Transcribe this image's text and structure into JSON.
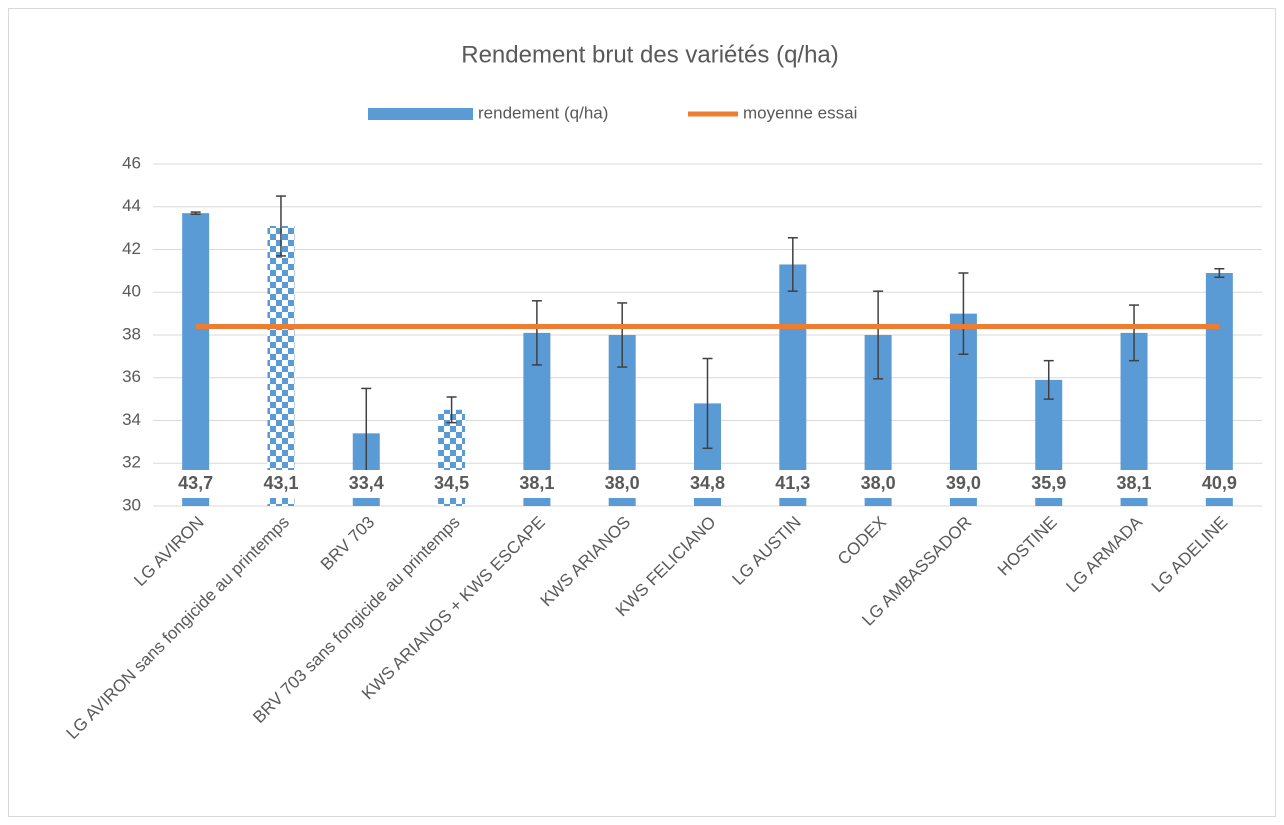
{
  "chart_data": {
    "type": "bar",
    "title": "Rendement brut des variétés (q/ha)",
    "categories": [
      "LG AVIRON",
      "LG AVIRON sans fongicide au printemps",
      "BRV 703",
      "BRV 703 sans fongicide au printemps",
      "KWS ARIANOS + KWS ESCAPE",
      "KWS ARIANOS",
      "KWS FELICIANO",
      "LG AUSTIN",
      "CODEX",
      "LG AMBASSADOR",
      "HOSTINE",
      "LG ARMADA",
      "LG ADELINE"
    ],
    "series": [
      {
        "name": "rendement (q/ha)",
        "type": "bar",
        "color": "#5b9bd5",
        "values": [
          43.7,
          43.1,
          33.4,
          34.5,
          38.1,
          38.0,
          34.8,
          41.3,
          38.0,
          39.0,
          35.9,
          38.1,
          40.9
        ],
        "value_labels": [
          "43,7",
          "43,1",
          "33,4",
          "34,5",
          "38,1",
          "38,0",
          "34,8",
          "41,3",
          "38,0",
          "39,0",
          "35,9",
          "38,1",
          "40,9"
        ],
        "errors": [
          0.05,
          1.4,
          2.1,
          0.6,
          1.5,
          1.5,
          2.1,
          1.25,
          2.05,
          1.9,
          0.9,
          1.3,
          0.2
        ],
        "patterns": [
          "solid",
          "checkered",
          "solid",
          "checkered",
          "solid",
          "solid",
          "solid",
          "solid",
          "solid",
          "solid",
          "solid",
          "solid",
          "solid"
        ]
      },
      {
        "name": "moyenne essai",
        "type": "line",
        "color": "#ed7d31",
        "values": [
          38.4,
          38.4,
          38.4,
          38.4,
          38.4,
          38.4,
          38.4,
          38.4,
          38.4,
          38.4,
          38.4,
          38.4,
          38.4
        ]
      }
    ],
    "ylim": [
      30,
      46
    ],
    "yticks": [
      30,
      32,
      34,
      36,
      38,
      40,
      42,
      44,
      46
    ],
    "grid": true
  }
}
